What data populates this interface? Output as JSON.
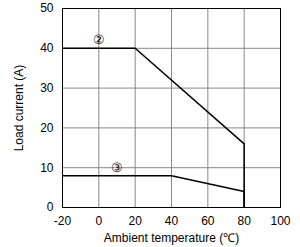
{
  "chart_data": {
    "type": "line",
    "x_label": "Ambient temperature (℃)",
    "y_label": "Load current (A)",
    "xlim": [
      -20,
      100
    ],
    "xticks": [
      -20,
      0,
      20,
      40,
      60,
      80,
      100
    ],
    "ylim": [
      0,
      50
    ],
    "yticks": [
      0,
      10,
      20,
      30,
      40,
      50
    ],
    "grid": true,
    "series": [
      {
        "name": "②",
        "color": "#000000",
        "x": [
          -20,
          20,
          80,
          80
        ],
        "values": [
          40,
          40,
          16,
          0
        ]
      },
      {
        "name": "③",
        "color": "#000000",
        "x": [
          -20,
          40,
          80,
          80
        ],
        "values": [
          8,
          8,
          4,
          0
        ]
      }
    ]
  }
}
